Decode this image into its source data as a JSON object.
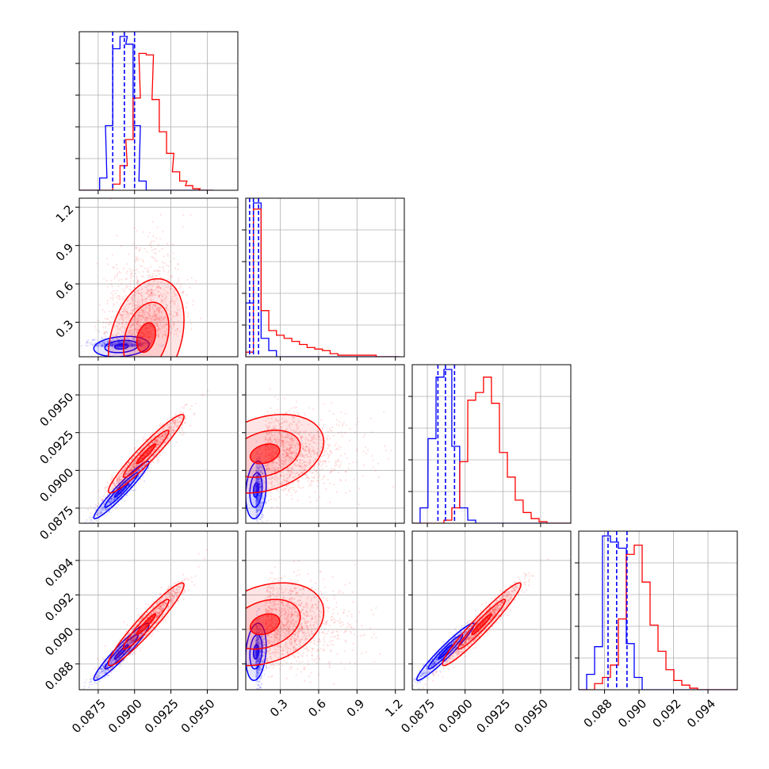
{
  "colors": {
    "series_a": "#0000ff",
    "series_b": "#ff0000",
    "grid": "#b0b0b0",
    "axes": "#000000",
    "background": "#ffffff"
  },
  "chart_data": {
    "type": "corner",
    "grid": true,
    "series": [
      {
        "color": "#0000ff",
        "center": [
          0.0891,
          0.11,
          0.0887,
          0.0887
        ],
        "stdev": [
          0.00095,
          0.04,
          0.00095,
          0.00083
        ],
        "quantile_lines": [
          [
            0.0885,
            0.0893,
            0.09
          ],
          [
            0.06,
            0.09,
            0.13
          ],
          [
            0.0882,
            0.0887,
            0.0893
          ],
          [
            0.0882,
            0.0887,
            0.0893
          ]
        ]
      },
      {
        "color": "#ff0000",
        "center": [
          0.0908,
          0.18,
          0.0911,
          0.0903
        ],
        "stdev": [
          0.0013,
          0.23,
          0.0013,
          0.0012
        ]
      }
    ],
    "parameters": [
      {
        "range": [
          0.0862,
          0.0971
        ],
        "ticks": [
          0.0875,
          0.09,
          0.0925,
          0.095
        ],
        "tick_labels": [
          "0.0875",
          "0.0900",
          "0.0925",
          "0.0950"
        ]
      },
      {
        "range": [
          0.03,
          1.27
        ],
        "ticks": [
          0.3,
          0.6,
          0.9,
          1.2
        ],
        "tick_labels": [
          "0.3",
          "0.6",
          "0.9",
          "1.2"
        ]
      },
      {
        "range": [
          0.0865,
          0.097
        ],
        "ticks": [
          0.0875,
          0.09,
          0.0925,
          0.095
        ],
        "tick_labels": [
          "0.0875",
          "0.0900",
          "0.0925",
          "0.0950"
        ]
      },
      {
        "range": [
          0.0865,
          0.0957
        ],
        "ticks": [
          0.088,
          0.09,
          0.092,
          0.094
        ],
        "tick_labels": [
          "0.088",
          "0.090",
          "0.092",
          "0.094"
        ]
      }
    ],
    "hist_1d": [
      {
        "bins": [
          0.0862,
          0.0867,
          0.0871,
          0.0876,
          0.088,
          0.0885,
          0.089,
          0.0894,
          0.0899,
          0.0903,
          0.0908,
          0.0912,
          0.0917,
          0.0922,
          0.0926,
          0.0931,
          0.0935,
          0.094,
          0.0944,
          0.0949
        ],
        "counts_a": [
          0,
          0,
          0,
          0.08,
          0.42,
          0.92,
          1.0,
          0.95,
          0.42,
          0.06,
          0,
          0,
          0,
          0,
          0,
          0,
          0,
          0,
          0,
          0
        ],
        "counts_b": [
          0,
          0,
          0,
          0,
          0,
          0.04,
          0.16,
          0.33,
          0.6,
          0.89,
          0.88,
          0.59,
          0.38,
          0.24,
          0.12,
          0.06,
          0.03,
          0.01,
          0,
          0
        ]
      },
      {
        "bins": [
          0.03,
          0.09,
          0.15,
          0.21,
          0.27,
          0.33,
          0.39,
          0.45,
          0.51,
          0.57,
          0.63,
          0.69,
          0.75,
          0.81,
          0.87,
          0.93,
          0.99,
          1.05,
          1.11,
          1.17,
          1.23
        ],
        "counts_a": [
          0.35,
          1.0,
          0.12,
          0.04,
          0.0,
          0,
          0,
          0,
          0,
          0,
          0,
          0,
          0,
          0,
          0,
          0,
          0,
          0,
          0,
          0
        ],
        "counts_b": [
          0.03,
          0.96,
          0.3,
          0.17,
          0.14,
          0.12,
          0.1,
          0.08,
          0.06,
          0.05,
          0.04,
          0.02,
          0.01,
          0.01,
          0.01,
          0.01,
          0.01,
          0,
          0,
          0
        ]
      },
      {
        "bins": [
          0.0865,
          0.08702,
          0.08755,
          0.08808,
          0.0886,
          0.08912,
          0.08965,
          0.09018,
          0.0907,
          0.09122,
          0.09175,
          0.09228,
          0.0928,
          0.09332,
          0.09385,
          0.09438,
          0.0949,
          0.09542,
          0.09595,
          0.09648
        ],
        "counts_a": [
          0,
          0.1,
          0.55,
          0.95,
          1.0,
          0.5,
          0.1,
          0.02,
          0,
          0,
          0,
          0,
          0,
          0,
          0,
          0,
          0,
          0,
          0,
          0
        ],
        "counts_b": [
          0,
          0,
          0,
          0,
          0.02,
          0.1,
          0.4,
          0.8,
          0.85,
          0.95,
          0.78,
          0.46,
          0.3,
          0.15,
          0.07,
          0.03,
          0.01,
          0,
          0,
          0
        ]
      },
      {
        "bins": [
          0.0865,
          0.08696,
          0.08742,
          0.08788,
          0.08834,
          0.0888,
          0.08926,
          0.08972,
          0.09018,
          0.09064,
          0.0911,
          0.09156,
          0.09202,
          0.09248,
          0.09294,
          0.0934,
          0.09386,
          0.09432,
          0.09478,
          0.09524
        ],
        "counts_a": [
          0,
          0.1,
          0.28,
          1.0,
          0.96,
          0.92,
          0.3,
          0.08,
          0,
          0,
          0,
          0,
          0,
          0,
          0,
          0,
          0,
          0,
          0,
          0
        ],
        "counts_b": [
          0,
          0,
          0.04,
          0.08,
          0.16,
          0.46,
          0.88,
          0.94,
          0.7,
          0.42,
          0.25,
          0.13,
          0.06,
          0.03,
          0.01,
          0,
          0,
          0,
          0,
          0
        ]
      }
    ]
  }
}
